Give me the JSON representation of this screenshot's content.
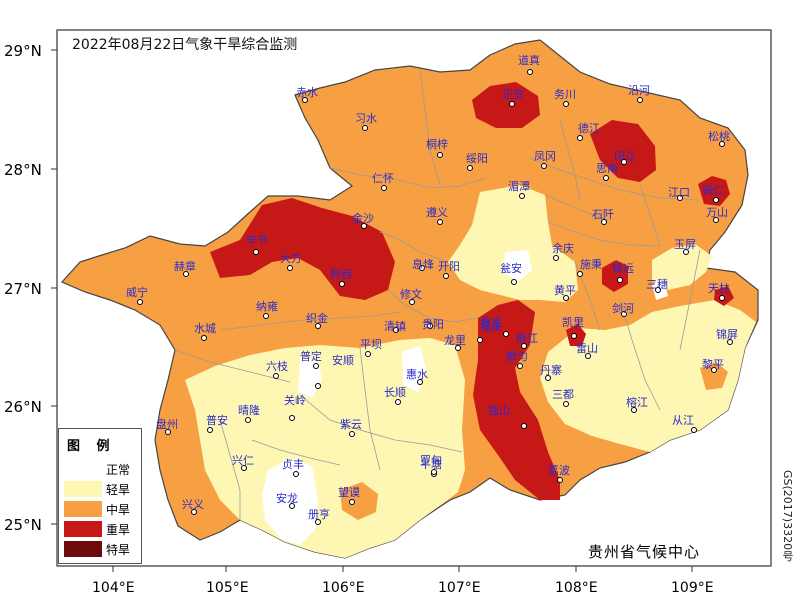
{
  "map": {
    "title": "2022年08月22日气象干旱综合监测",
    "credit": "贵州省气候中心",
    "side_note": "GS(2017)3320号",
    "lat_labels": [
      "29°N",
      "28°N",
      "27°N",
      "26°N",
      "25°N"
    ],
    "lon_labels": [
      "104°E",
      "105°E",
      "106°E",
      "107°E",
      "108°E",
      "109°E"
    ],
    "legend": {
      "title": "图 例",
      "items": [
        {
          "label": "正常",
          "color": "#ffffff"
        },
        {
          "label": "轻旱",
          "color": "#fdf7b3"
        },
        {
          "label": "中旱",
          "color": "#f7a043"
        },
        {
          "label": "重旱",
          "color": "#c71818"
        },
        {
          "label": "特旱",
          "color": "#6e0a0a"
        }
      ]
    },
    "colors": {
      "normal": "#ffffff",
      "light": "#fdf7b3",
      "moderate": "#f7a043",
      "severe": "#c71818",
      "extreme": "#6e0a0a",
      "frame": "#333333",
      "county_border": "#9a9a9a",
      "station_text": "#2a2acc"
    },
    "stations": [
      "道真",
      "赤水",
      "桐梓",
      "正安",
      "务川",
      "沿河",
      "习水",
      "德江",
      "印江",
      "松桃",
      "仁怀",
      "绥阳",
      "凤冈",
      "思南",
      "江口",
      "铜仁",
      "湄潭",
      "石阡",
      "遵义",
      "金沙",
      "毕节",
      "大方",
      "余庆",
      "万山",
      "赫章",
      "黔西",
      "息烽",
      "开阳",
      "瓮安",
      "施秉",
      "玉屏",
      "威宁",
      "修文",
      "黄平",
      "镇远",
      "三穗",
      "纳雍",
      "织金",
      "清镇",
      "贵阳",
      "福泉",
      "凯里",
      "剑河",
      "天柱",
      "水城",
      "龙里",
      "麻江",
      "雷山",
      "锦屏",
      "六枝",
      "普定",
      "平坝",
      "贵定",
      "都匀",
      "丹寨",
      "榕江",
      "黎平",
      "安顺",
      "惠水",
      "长顺",
      "独山",
      "三都",
      "从江",
      "盘州",
      "晴隆",
      "关岭",
      "紫云",
      "平塘",
      "荔波",
      "普安",
      "兴仁",
      "贞丰",
      "罗甸",
      "兴义",
      "安龙",
      "望谟",
      "册亨"
    ]
  }
}
